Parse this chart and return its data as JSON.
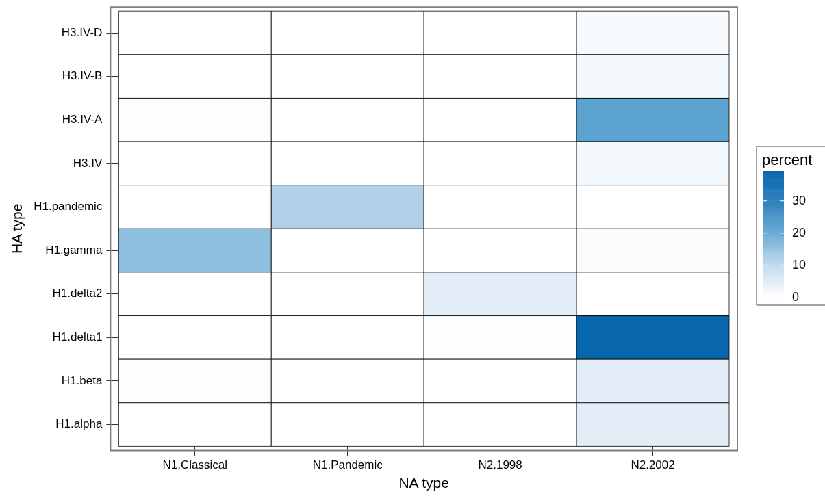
{
  "chart_data": {
    "type": "heatmap",
    "xlabel": "NA type",
    "ylabel": "HA type",
    "clabel": "percent",
    "categories": [
      "N1.Classical",
      "N1.Pandemic",
      "N2.1998",
      "N2.2002"
    ],
    "y_categories": [
      "H3.IV-D",
      "H3.IV-B",
      "H3.IV-A",
      "H3.IV",
      "H1.pandemic",
      "H1.gamma",
      "H1.delta2",
      "H1.delta1",
      "H1.beta",
      "H1.alpha"
    ],
    "cells": [
      [
        0,
        0,
        0,
        1.5
      ],
      [
        0,
        0,
        0,
        2
      ],
      [
        0.5,
        0,
        0,
        22
      ],
      [
        0,
        0,
        0,
        2
      ],
      [
        0,
        12,
        0,
        0
      ],
      [
        16,
        0,
        0,
        1
      ],
      [
        0,
        0,
        5,
        0
      ],
      [
        0,
        0,
        0.5,
        39.3
      ],
      [
        0.5,
        0,
        0,
        5
      ],
      [
        0,
        0,
        0,
        5
      ]
    ],
    "clim": [
      0,
      39.3
    ],
    "cticks": [
      0,
      10,
      20,
      30
    ]
  }
}
